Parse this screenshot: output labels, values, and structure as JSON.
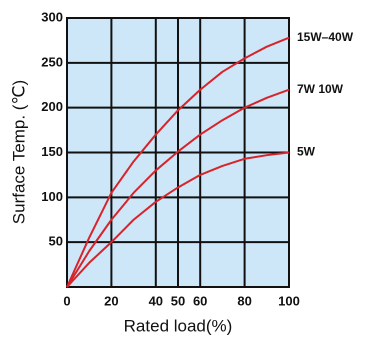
{
  "chart_data": {
    "type": "line",
    "x_label": "Rated load(%)",
    "y_label": "Surface Temp. (℃)",
    "x": [
      0,
      10,
      20,
      30,
      40,
      50,
      60,
      70,
      80,
      90,
      100
    ],
    "series": [
      {
        "name": "15W–40W",
        "color": "#d8232a",
        "values": [
          0,
          55,
          105,
          140,
          170,
          197,
          220,
          240,
          255,
          268,
          278
        ]
      },
      {
        "name": "7W  10W",
        "color": "#d8232a",
        "values": [
          0,
          40,
          75,
          105,
          130,
          151,
          170,
          186,
          200,
          211,
          220
        ]
      },
      {
        "name": "5W",
        "color": "#d8232a",
        "values": [
          0,
          27,
          50,
          75,
          95,
          111,
          125,
          135,
          143,
          147,
          150
        ]
      }
    ],
    "xlim": [
      0,
      100
    ],
    "xticks": [
      0,
      20,
      40,
      50,
      60,
      80,
      100
    ],
    "ylim": [
      0,
      300
    ],
    "yticks": [
      50,
      100,
      150,
      200,
      250,
      300
    ],
    "grid": true,
    "background": "#cde7f8"
  }
}
